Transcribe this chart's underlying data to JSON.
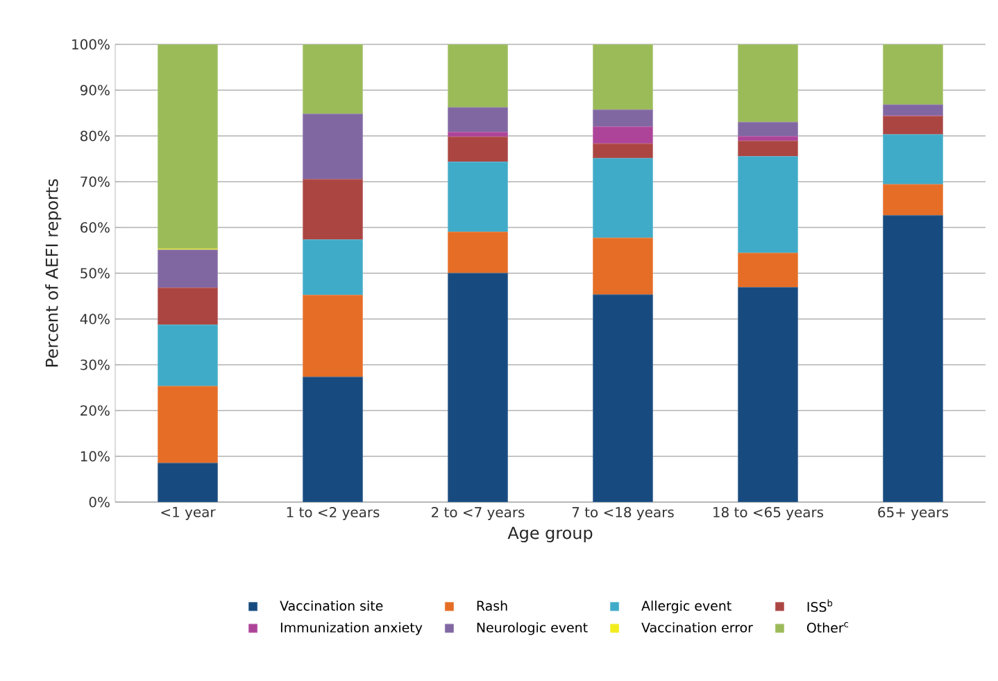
{
  "chart_data": {
    "type": "bar",
    "stacked": true,
    "xlabel": "Age group",
    "ylabel": "Percent of AEFI reports",
    "categories": [
      "<1 year",
      "1 to <2 years",
      "2 to <7 years",
      "7 to <18 years",
      "18 to <65 years",
      "65+ years"
    ],
    "series": [
      {
        "name": "Vaccination site",
        "color": "#174a7e",
        "values": [
          8.5,
          27.3,
          50,
          45.3,
          46.9,
          62.6
        ]
      },
      {
        "name": "Rash",
        "color": "#e56d25",
        "values": [
          16.8,
          17.9,
          9,
          12.4,
          7.5,
          6.8
        ]
      },
      {
        "name": "Allergic event",
        "color": "#3fabc8",
        "values": [
          13.4,
          12.1,
          15.3,
          17.4,
          21.1,
          10.9
        ]
      },
      {
        "name": "ISS$^{b}$",
        "color": "#ab4542",
        "values": [
          8.1,
          13.2,
          5.5,
          3.2,
          3.4,
          4.0
        ]
      },
      {
        "name": "Immunization anxiety",
        "color": "#ad4499",
        "values": [
          0,
          0,
          1.0,
          3.7,
          1.0,
          0.1
        ]
      },
      {
        "name": "Neurologic event",
        "color": "#8067a2",
        "values": [
          8.3,
          14.3,
          5.4,
          3.7,
          3.1,
          2.4
        ]
      },
      {
        "name": "Vaccination error",
        "color": "#f2ec1b",
        "values": [
          0.2,
          0,
          0,
          0,
          0,
          0
        ]
      },
      {
        "name": "Other$^{c}$",
        "color": "#9bbb59",
        "values": [
          44.7,
          15.2,
          13.8,
          14.3,
          17.0,
          13.2
        ]
      }
    ],
    "ylim": [
      0,
      100
    ],
    "yticks": [
      {
        "value": 0,
        "label": "0%"
      },
      {
        "value": 10,
        "label": "10%"
      },
      {
        "value": 20,
        "label": "20%"
      },
      {
        "value": 30,
        "label": "30%"
      },
      {
        "value": 40,
        "label": "40%"
      },
      {
        "value": 50,
        "label": "50%"
      },
      {
        "value": 60,
        "label": "60%"
      },
      {
        "value": 70,
        "label": "70%"
      },
      {
        "value": 80,
        "label": "80%"
      },
      {
        "value": 90,
        "label": "90%"
      },
      {
        "value": 100,
        "label": "100%"
      }
    ],
    "grid": "y",
    "legend": "bottom"
  }
}
